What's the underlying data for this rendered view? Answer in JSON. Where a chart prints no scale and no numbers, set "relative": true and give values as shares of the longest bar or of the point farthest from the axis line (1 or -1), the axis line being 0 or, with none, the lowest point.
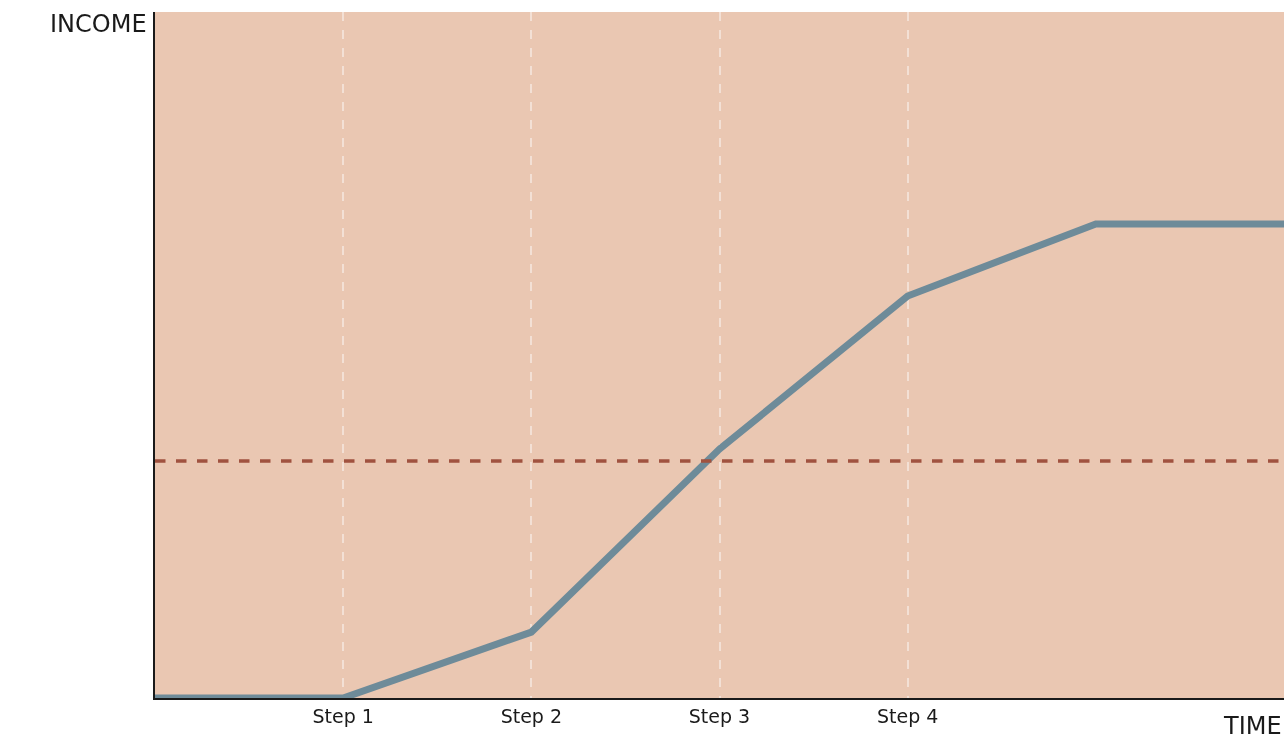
{
  "chart_data": {
    "type": "line",
    "relative": true,
    "xlabel": "TIME",
    "annotations": [
      "INCOME"
    ],
    "categories": [
      null,
      "Step 1",
      "Step 2",
      "Step 3",
      "Step 4",
      null,
      null
    ],
    "series": [
      {
        "color": "#6e8b99",
        "values": [
          0,
          0,
          0.139,
          0.525,
          0.848,
          1,
          1
        ]
      }
    ],
    "ref_lines": [
      {
        "axis": "y",
        "value": 0.5,
        "color": "#a0523f",
        "line_style": "dashed"
      }
    ],
    "grid": "x",
    "line_style": "solid",
    "marker": "none"
  }
}
